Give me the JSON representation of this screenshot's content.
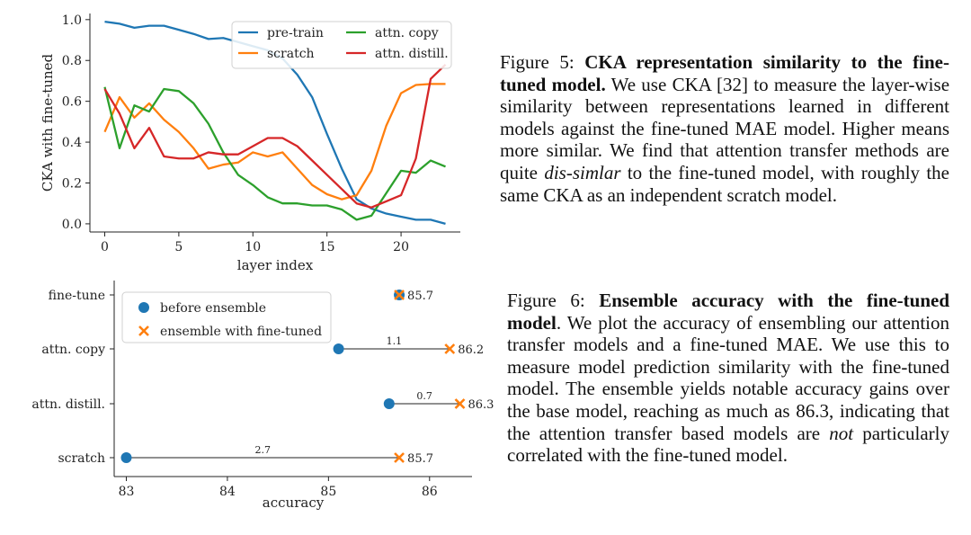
{
  "colors": {
    "pretrain": "#1f77b4",
    "scratch": "#ff7f0e",
    "attn_copy": "#2ca02c",
    "attn_distill": "#d62728",
    "marker_before": "#1f77b4",
    "marker_ensemble": "#ff7f0e"
  },
  "chart_data": [
    {
      "type": "line",
      "xlabel": "layer index",
      "ylabel": "CKA with fine-tuned",
      "xlim": [
        -1,
        24
      ],
      "ylim": [
        -0.04,
        1.03
      ],
      "xticks": [
        "0",
        "5",
        "10",
        "15",
        "20"
      ],
      "yticks": [
        "0.0",
        "0.2",
        "0.4",
        "0.6",
        "0.8",
        "1.0"
      ],
      "grid": false,
      "legend_position": "top-right",
      "x": [
        0,
        1,
        2,
        3,
        4,
        5,
        6,
        7,
        8,
        9,
        10,
        11,
        12,
        13,
        14,
        15,
        16,
        17,
        18,
        19,
        20,
        21,
        22,
        23
      ],
      "series": [
        {
          "name": "pre-train",
          "values": [
            0.99,
            0.98,
            0.96,
            0.97,
            0.97,
            0.95,
            0.93,
            0.905,
            0.91,
            0.89,
            0.87,
            0.85,
            0.81,
            0.73,
            0.62,
            0.44,
            0.27,
            0.12,
            0.075,
            0.05,
            0.035,
            0.02,
            0.02,
            0.0
          ]
        },
        {
          "name": "scratch",
          "values": [
            0.45,
            0.62,
            0.52,
            0.59,
            0.51,
            0.45,
            0.37,
            0.27,
            0.29,
            0.3,
            0.35,
            0.33,
            0.35,
            0.27,
            0.19,
            0.145,
            0.12,
            0.14,
            0.26,
            0.48,
            0.64,
            0.68,
            0.685,
            0.685
          ]
        },
        {
          "name": "attn. copy",
          "values": [
            0.67,
            0.37,
            0.58,
            0.55,
            0.66,
            0.65,
            0.59,
            0.49,
            0.35,
            0.24,
            0.19,
            0.13,
            0.1,
            0.1,
            0.09,
            0.09,
            0.07,
            0.02,
            0.04,
            0.15,
            0.26,
            0.25,
            0.31,
            0.28
          ]
        },
        {
          "name": "attn. distill.",
          "values": [
            0.66,
            0.54,
            0.37,
            0.47,
            0.33,
            0.32,
            0.32,
            0.35,
            0.34,
            0.34,
            0.38,
            0.42,
            0.42,
            0.38,
            0.31,
            0.24,
            0.17,
            0.1,
            0.08,
            0.11,
            0.14,
            0.32,
            0.71,
            0.78
          ]
        }
      ]
    },
    {
      "type": "scatter",
      "xlabel": "accuracy",
      "ylabel": "",
      "xlim": [
        82.88,
        86.42
      ],
      "xticks": [
        "83",
        "84",
        "85",
        "86"
      ],
      "grid": false,
      "legend_position": "top-left",
      "categories": [
        "fine-tune",
        "attn. copy",
        "attn. distill.",
        "scratch"
      ],
      "series": [
        {
          "name": "before ensemble",
          "values": [
            85.7,
            85.1,
            85.6,
            83.0
          ]
        },
        {
          "name": "ensemble with fine-tuned",
          "values": [
            85.7,
            86.2,
            86.3,
            85.7
          ]
        }
      ],
      "ensemble_labels": [
        "85.7",
        "86.2",
        "86.3",
        "85.7"
      ],
      "gain_labels": [
        "",
        "1.1",
        "0.7",
        "2.7"
      ]
    }
  ],
  "captions": {
    "fig5": {
      "label": "Figure 5:",
      "title": "CKA representation similarity to the fine-tuned model.",
      "body_1": "We use CKA [32] to measure the layer-wise similarity between representations learned in different models against the fine-tuned MAE model. Higher means more similar. We find that attention transfer methods are quite",
      "emph": "dis-simlar",
      "body_2": "to the fine-tuned model, with roughly the same CKA as an independent scratch model."
    },
    "fig6": {
      "label": "Figure 6:",
      "title": "Ensemble accuracy with the fine-tuned model",
      "body_1": ". We plot the accuracy of ensembling our attention transfer models and a fine-tuned MAE. We use this to measure model prediction similarity with the fine-tuned model. The ensemble yields notable accuracy gains over the base model, reaching as much as 86.3, indicating that the attention transfer based models are",
      "emph": "not",
      "body_2": "particularly correlated with the fine-tuned model."
    }
  }
}
